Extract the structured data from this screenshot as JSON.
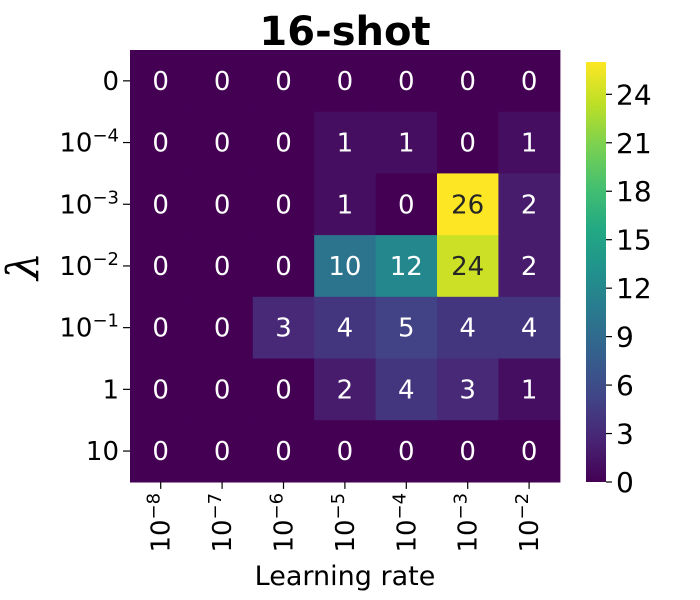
{
  "chart_data": {
    "type": "heatmap",
    "title": "16-shot",
    "xlabel": "Learning rate",
    "ylabel": "λ",
    "x_ticks": [
      {
        "base": "10",
        "exp": "−8"
      },
      {
        "base": "10",
        "exp": "−7"
      },
      {
        "base": "10",
        "exp": "−6"
      },
      {
        "base": "10",
        "exp": "−5"
      },
      {
        "base": "10",
        "exp": "−4"
      },
      {
        "base": "10",
        "exp": "−3"
      },
      {
        "base": "10",
        "exp": "−2"
      }
    ],
    "y_ticks": [
      {
        "base": "0",
        "exp": ""
      },
      {
        "base": "10",
        "exp": "−4"
      },
      {
        "base": "10",
        "exp": "−3"
      },
      {
        "base": "10",
        "exp": "−2"
      },
      {
        "base": "10",
        "exp": "−1"
      },
      {
        "base": "1",
        "exp": ""
      },
      {
        "base": "10",
        "exp": ""
      }
    ],
    "values": [
      [
        0,
        0,
        0,
        0,
        0,
        0,
        0
      ],
      [
        0,
        0,
        0,
        1,
        1,
        0,
        1
      ],
      [
        0,
        0,
        0,
        1,
        0,
        26,
        2
      ],
      [
        0,
        0,
        0,
        10,
        12,
        24,
        2
      ],
      [
        0,
        0,
        3,
        4,
        5,
        4,
        4
      ],
      [
        0,
        0,
        0,
        2,
        4,
        3,
        1
      ],
      [
        0,
        0,
        0,
        0,
        0,
        0,
        0
      ]
    ],
    "colormap": "viridis",
    "colorbar": {
      "min": 0,
      "max": 26,
      "ticks": [
        0,
        3,
        6,
        9,
        12,
        15,
        18,
        21,
        24
      ]
    }
  }
}
